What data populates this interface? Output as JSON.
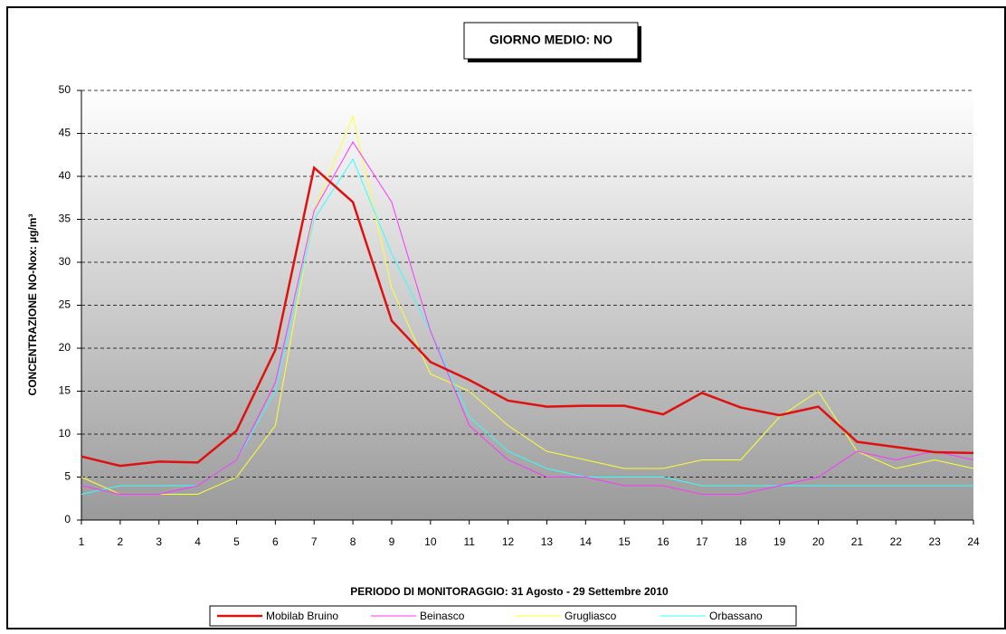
{
  "chart_data": {
    "type": "line",
    "title": "GIORNO MEDIO: NO",
    "x_label": "PERIODO DI MONITORAGGIO: 31 Agosto - 29 Settembre 2010",
    "y_label": "CONCENTRAZIONE NO-Nox: µg/m³",
    "x": [
      1,
      2,
      3,
      4,
      5,
      6,
      7,
      8,
      9,
      10,
      11,
      12,
      13,
      14,
      15,
      16,
      17,
      18,
      19,
      20,
      21,
      22,
      23,
      24
    ],
    "xlim": [
      1,
      24
    ],
    "xticks": [
      1,
      2,
      3,
      4,
      5,
      6,
      7,
      8,
      9,
      10,
      11,
      12,
      13,
      14,
      15,
      16,
      17,
      18,
      19,
      20,
      21,
      22,
      23,
      24
    ],
    "ylim": [
      0,
      50
    ],
    "yticks": [
      0,
      5,
      10,
      15,
      20,
      25,
      30,
      35,
      40,
      45,
      50
    ],
    "grid": true,
    "series": [
      {
        "name": "Mobilab Bruino",
        "color": "#e01010",
        "width": 2.5,
        "values": [
          7.4,
          6.3,
          6.8,
          6.7,
          10.4,
          19.8,
          41,
          37,
          23.2,
          18.4,
          16.3,
          13.9,
          13.2,
          13.3,
          13.3,
          12.3,
          14.8,
          13.1,
          12.2,
          13.2,
          9.1,
          8.5,
          7.9,
          7.8
        ]
      },
      {
        "name": "Beinasco",
        "color": "#ff33ff",
        "width": 1,
        "values": [
          4,
          3,
          3,
          4,
          7,
          16,
          36,
          44,
          37,
          22,
          11,
          7,
          5,
          5,
          4,
          4,
          3,
          3,
          4,
          5,
          8,
          7,
          8,
          7
        ]
      },
      {
        "name": "Grugliasco",
        "color": "#ffff33",
        "width": 1,
        "values": [
          5,
          3,
          3,
          3,
          5,
          11,
          36,
          47,
          27,
          17,
          15,
          11,
          8,
          7,
          6,
          6,
          7,
          7,
          12,
          15,
          8,
          6,
          7,
          6
        ]
      },
      {
        "name": "Orbassano",
        "color": "#33ffff",
        "width": 1,
        "values": [
          3,
          4,
          4,
          4,
          7,
          15,
          35,
          42,
          31,
          22,
          12,
          8,
          6,
          5,
          5,
          5,
          4,
          4,
          4,
          4,
          4,
          4,
          4,
          4
        ]
      }
    ]
  }
}
